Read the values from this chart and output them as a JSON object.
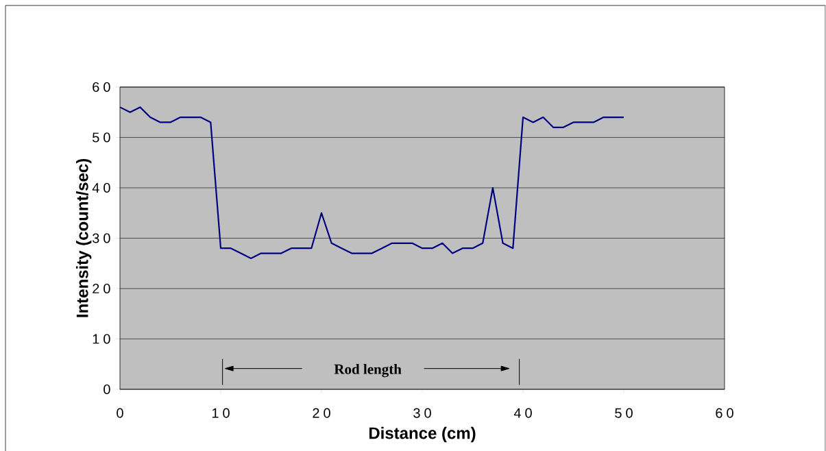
{
  "chart_data": {
    "type": "line",
    "xlabel": "Distance (cm)",
    "ylabel": "Intensity (count/sec)",
    "x": [
      0,
      1,
      2,
      3,
      4,
      5,
      6,
      7,
      8,
      9,
      10,
      11,
      12,
      13,
      14,
      15,
      16,
      17,
      18,
      19,
      20,
      21,
      22,
      23,
      24,
      25,
      26,
      27,
      28,
      29,
      30,
      31,
      32,
      33,
      34,
      35,
      36,
      37,
      38,
      39,
      40,
      41,
      42,
      43,
      44,
      45,
      46,
      47,
      48,
      49,
      50
    ],
    "series": [
      {
        "color": "#000080",
        "values": [
          56,
          55,
          56,
          54,
          53,
          53,
          54,
          54,
          54,
          53,
          28,
          28,
          27,
          26,
          27,
          27,
          27,
          28,
          28,
          28,
          35,
          29,
          28,
          27,
          27,
          27,
          28,
          29,
          29,
          29,
          28,
          28,
          29,
          27,
          28,
          28,
          29,
          40,
          29,
          28,
          54,
          53,
          54,
          52,
          52,
          53,
          53,
          53,
          54,
          54,
          54
        ]
      }
    ],
    "xlim": [
      0,
      60
    ],
    "xticks": [
      0,
      10,
      20,
      30,
      40,
      50,
      60
    ],
    "ylim": [
      0,
      60
    ],
    "yticks": [
      0,
      10,
      20,
      30,
      40,
      50,
      60
    ],
    "grid": "y",
    "marker": "none",
    "line_style": "solid",
    "annotations": [
      "Rod length"
    ]
  }
}
